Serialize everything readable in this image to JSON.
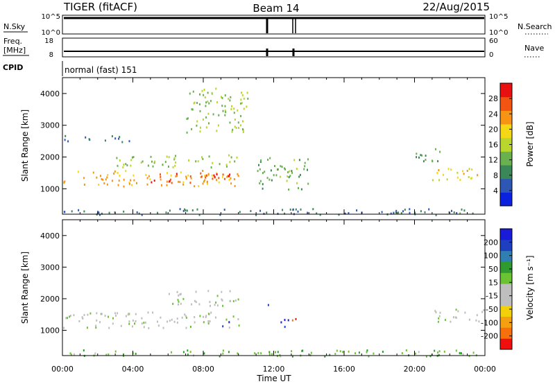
{
  "header": {
    "title": "TIGER (fitACF)",
    "beam": "Beam 14",
    "date": "22/Aug/2015"
  },
  "top_panels": {
    "nsky_label": "N.Sky",
    "nsearch_label": "N.Search",
    "nsky_ticks": [
      "10^5",
      "10^0"
    ],
    "nsearch_ticks": [
      "10^5",
      "10^0"
    ],
    "freq_label_1": "Freq.",
    "freq_label_2": "[MHz]",
    "freq_ticks": [
      "18",
      "8"
    ],
    "nave_label": "Nave",
    "nave_ticks": [
      "60",
      "0"
    ],
    "cpid_label": "CPID",
    "cpid_text": "normal (fast) 151"
  },
  "colors": {
    "power": [
      "#0a22e0",
      "#2e57b5",
      "#3a8757",
      "#69b04f",
      "#b9d62d",
      "#f4d816",
      "#f79414",
      "#f25512",
      "#e81010"
    ],
    "velocity": [
      "#f00f0f",
      "#f7700c",
      "#f5a011",
      "#f2d00a",
      "#bebebe",
      "#bebebe",
      "#6bc233",
      "#2f9a2f",
      "#2f7fb0",
      "#1e3fbf",
      "#1a1ad9"
    ],
    "gray": "#bebebe"
  },
  "chart_data": [
    {
      "type": "heatmap",
      "name": "power",
      "ylabel": "Slant Range [km]",
      "yticks": [
        "4000",
        "3000",
        "2000",
        "1000"
      ],
      "ylim": [
        200,
        4500
      ],
      "xlim": [
        "00:00",
        "24:00"
      ],
      "colorbar_label": "Power [dB]",
      "colorbar_ticks": [
        "28",
        "24",
        "20",
        "16",
        "12",
        "8",
        "4"
      ],
      "colorbar_range": [
        0,
        32
      ],
      "regions": [
        {
          "t": [
            0,
            10
          ],
          "r": [
            1100,
            1600
          ],
          "level": 22
        },
        {
          "t": [
            5,
            9.5
          ],
          "r": [
            1200,
            1550
          ],
          "level": 28
        },
        {
          "t": [
            3,
            10
          ],
          "r": [
            1700,
            2100
          ],
          "level": 14
        },
        {
          "t": [
            0,
            4
          ],
          "r": [
            2500,
            2700
          ],
          "level": 8
        },
        {
          "t": [
            7,
            10.5
          ],
          "r": [
            2800,
            4200
          ],
          "level": 14
        },
        {
          "t": [
            21,
            24
          ],
          "r": [
            1300,
            1700
          ],
          "level": 20
        },
        {
          "t": [
            20,
            21.5
          ],
          "r": [
            1800,
            2300
          ],
          "level": 10
        },
        {
          "t": [
            11,
            14
          ],
          "r": [
            1000,
            2000
          ],
          "level": 12
        },
        {
          "t": [
            0,
            24
          ],
          "r": [
            200,
            400
          ],
          "level": 8
        }
      ]
    },
    {
      "type": "heatmap",
      "name": "velocity",
      "ylabel": "Slant Range [km]",
      "yticks": [
        "4000",
        "3000",
        "2000",
        "1000"
      ],
      "ylim": [
        200,
        4500
      ],
      "xlim": [
        "00:00",
        "24:00"
      ],
      "xlabel": "Time UT",
      "xticks": [
        "00:00",
        "04:00",
        "08:00",
        "12:00",
        "16:00",
        "20:00",
        "00:00"
      ],
      "colorbar_label": "Velocity [m s⁻¹]",
      "colorbar_ticks": [
        "200",
        "100",
        "50",
        "15",
        "-15",
        "-50",
        "-100",
        "-200"
      ],
      "colorbar_range": [
        -250,
        250
      ],
      "regions": [
        {
          "t": [
            0,
            10
          ],
          "r": [
            1100,
            1600
          ],
          "level": 0
        },
        {
          "t": [
            6,
            10
          ],
          "r": [
            1800,
            2300
          ],
          "level": 0
        },
        {
          "t": [
            9,
            9.6
          ],
          "r": [
            1100,
            1300
          ],
          "level": 220
        },
        {
          "t": [
            11.4,
            11.7
          ],
          "r": [
            1700,
            2000
          ],
          "level": 220
        },
        {
          "t": [
            12.2,
            12.8
          ],
          "r": [
            1100,
            1500
          ],
          "level": 220
        },
        {
          "t": [
            13,
            13.3
          ],
          "r": [
            1100,
            1400
          ],
          "level": -230
        },
        {
          "t": [
            21,
            24
          ],
          "r": [
            1300,
            1700
          ],
          "level": 0
        },
        {
          "t": [
            0,
            24
          ],
          "r": [
            200,
            400
          ],
          "level": 60
        }
      ]
    }
  ]
}
